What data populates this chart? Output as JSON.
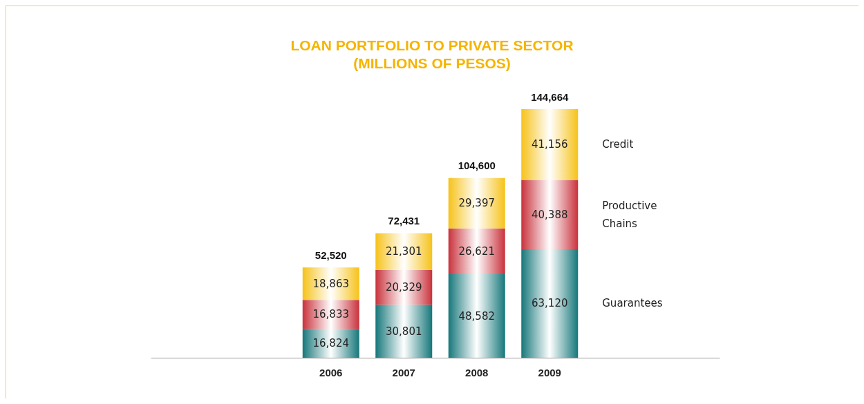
{
  "chart_data": {
    "type": "bar",
    "title": "LOAN PORTFOLIO TO PRIVATE SECTOR\n(MILLIONS OF PESOS)",
    "categories": [
      "2006",
      "2007",
      "2008",
      "2009"
    ],
    "stacked": true,
    "legend": "right",
    "series": [
      {
        "name": "Guarantees",
        "color": "#16777a",
        "values": [
          16824,
          30801,
          48582,
          63120
        ],
        "value_labels": [
          "16,824",
          "30,801",
          "48,582",
          "63,120"
        ]
      },
      {
        "name": "Productive Chains",
        "color": "#c9323c",
        "values": [
          16833,
          20329,
          26621,
          40388
        ],
        "value_labels": [
          "16,833",
          "20,329",
          "26,621",
          "40,388"
        ]
      },
      {
        "name": "Credit",
        "color": "#f6c21a",
        "values": [
          18863,
          21301,
          29397,
          41156
        ],
        "value_labels": [
          "18,863",
          "21,301",
          "29,397",
          "41,156"
        ]
      }
    ],
    "totals": [
      "52,520",
      "72,431",
      "104,600",
      "144,664"
    ]
  }
}
